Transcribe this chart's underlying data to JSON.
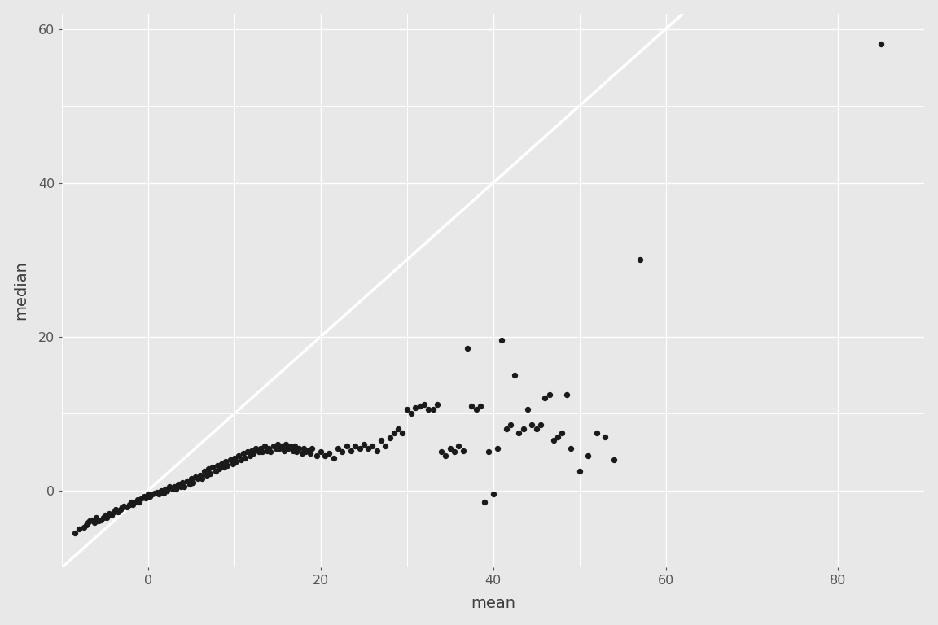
{
  "title": "",
  "xlabel": "mean",
  "ylabel": "median",
  "xlim": [
    -10,
    90
  ],
  "ylim": [
    -10,
    62
  ],
  "xticks": [
    0,
    20,
    40,
    60,
    80
  ],
  "yticks": [
    0,
    20,
    40,
    60
  ],
  "background_color": "#E8E8E8",
  "grid_color": "#FFFFFF",
  "line_color": "#FFFFFF",
  "dot_color": "#1A1A1A",
  "dot_size": 28,
  "points": [
    [
      -8.5,
      -5.5
    ],
    [
      -8.0,
      -5.0
    ],
    [
      -7.5,
      -4.8
    ],
    [
      -7.2,
      -4.5
    ],
    [
      -7.0,
      -4.2
    ],
    [
      -6.8,
      -4.0
    ],
    [
      -6.5,
      -3.8
    ],
    [
      -6.2,
      -4.2
    ],
    [
      -6.0,
      -3.5
    ],
    [
      -5.8,
      -4.0
    ],
    [
      -5.5,
      -3.8
    ],
    [
      -5.2,
      -3.5
    ],
    [
      -5.0,
      -3.2
    ],
    [
      -4.8,
      -3.5
    ],
    [
      -4.5,
      -3.0
    ],
    [
      -4.2,
      -3.2
    ],
    [
      -4.0,
      -2.8
    ],
    [
      -3.8,
      -2.5
    ],
    [
      -3.5,
      -2.8
    ],
    [
      -3.2,
      -2.5
    ],
    [
      -3.0,
      -2.2
    ],
    [
      -2.8,
      -2.0
    ],
    [
      -2.5,
      -2.2
    ],
    [
      -2.2,
      -1.8
    ],
    [
      -2.0,
      -1.5
    ],
    [
      -1.8,
      -1.8
    ],
    [
      -1.5,
      -1.5
    ],
    [
      -1.2,
      -1.2
    ],
    [
      -1.0,
      -1.5
    ],
    [
      -0.8,
      -1.0
    ],
    [
      -0.5,
      -0.8
    ],
    [
      -0.3,
      -1.0
    ],
    [
      0.0,
      -0.5
    ],
    [
      0.2,
      -0.8
    ],
    [
      0.5,
      -0.5
    ],
    [
      0.8,
      -0.3
    ],
    [
      1.0,
      -0.2
    ],
    [
      1.2,
      -0.5
    ],
    [
      1.5,
      0.0
    ],
    [
      1.8,
      -0.3
    ],
    [
      2.0,
      0.2
    ],
    [
      2.2,
      0.0
    ],
    [
      2.5,
      0.5
    ],
    [
      2.8,
      0.2
    ],
    [
      3.0,
      0.5
    ],
    [
      3.2,
      0.2
    ],
    [
      3.5,
      0.8
    ],
    [
      3.8,
      0.5
    ],
    [
      4.0,
      1.0
    ],
    [
      4.2,
      0.5
    ],
    [
      4.5,
      1.2
    ],
    [
      4.8,
      0.8
    ],
    [
      5.0,
      1.5
    ],
    [
      5.2,
      1.0
    ],
    [
      5.5,
      1.8
    ],
    [
      5.8,
      1.5
    ],
    [
      6.0,
      2.0
    ],
    [
      6.2,
      1.5
    ],
    [
      6.5,
      2.5
    ],
    [
      6.8,
      2.0
    ],
    [
      7.0,
      2.8
    ],
    [
      7.2,
      2.2
    ],
    [
      7.5,
      3.0
    ],
    [
      7.8,
      2.5
    ],
    [
      8.0,
      3.2
    ],
    [
      8.2,
      2.8
    ],
    [
      8.5,
      3.5
    ],
    [
      8.8,
      3.0
    ],
    [
      9.0,
      3.8
    ],
    [
      9.2,
      3.2
    ],
    [
      9.5,
      4.0
    ],
    [
      9.8,
      3.5
    ],
    [
      10.0,
      4.2
    ],
    [
      10.2,
      3.8
    ],
    [
      10.5,
      4.5
    ],
    [
      10.8,
      4.0
    ],
    [
      11.0,
      4.8
    ],
    [
      11.2,
      4.2
    ],
    [
      11.5,
      5.0
    ],
    [
      11.8,
      4.5
    ],
    [
      12.0,
      5.2
    ],
    [
      12.2,
      4.8
    ],
    [
      12.5,
      5.5
    ],
    [
      12.8,
      5.0
    ],
    [
      13.0,
      5.5
    ],
    [
      13.2,
      5.0
    ],
    [
      13.5,
      5.8
    ],
    [
      13.8,
      5.2
    ],
    [
      14.0,
      5.5
    ],
    [
      14.2,
      5.0
    ],
    [
      14.5,
      5.8
    ],
    [
      14.8,
      5.5
    ],
    [
      15.0,
      6.0
    ],
    [
      15.2,
      5.5
    ],
    [
      15.5,
      5.8
    ],
    [
      15.8,
      5.2
    ],
    [
      16.0,
      6.0
    ],
    [
      16.2,
      5.5
    ],
    [
      16.5,
      5.8
    ],
    [
      16.8,
      5.2
    ],
    [
      17.0,
      5.8
    ],
    [
      17.2,
      5.0
    ],
    [
      17.5,
      5.5
    ],
    [
      17.8,
      4.8
    ],
    [
      18.0,
      5.5
    ],
    [
      18.2,
      5.0
    ],
    [
      18.5,
      5.2
    ],
    [
      18.8,
      4.8
    ],
    [
      19.0,
      5.5
    ],
    [
      19.5,
      4.5
    ],
    [
      20.0,
      5.0
    ],
    [
      20.5,
      4.5
    ],
    [
      21.0,
      4.8
    ],
    [
      21.5,
      4.2
    ],
    [
      22.0,
      5.5
    ],
    [
      22.5,
      5.0
    ],
    [
      23.0,
      5.8
    ],
    [
      23.5,
      5.2
    ],
    [
      24.0,
      5.8
    ],
    [
      24.5,
      5.5
    ],
    [
      25.0,
      6.0
    ],
    [
      25.5,
      5.5
    ],
    [
      26.0,
      5.8
    ],
    [
      26.5,
      5.2
    ],
    [
      27.0,
      6.5
    ],
    [
      27.5,
      5.8
    ],
    [
      28.0,
      6.8
    ],
    [
      28.5,
      7.5
    ],
    [
      29.0,
      8.0
    ],
    [
      29.5,
      7.5
    ],
    [
      30.0,
      10.5
    ],
    [
      30.5,
      10.0
    ],
    [
      31.0,
      10.8
    ],
    [
      31.5,
      11.0
    ],
    [
      32.0,
      11.2
    ],
    [
      32.5,
      10.5
    ],
    [
      33.0,
      10.5
    ],
    [
      33.5,
      11.2
    ],
    [
      34.0,
      5.0
    ],
    [
      34.5,
      4.5
    ],
    [
      35.0,
      5.5
    ],
    [
      35.5,
      5.0
    ],
    [
      36.0,
      5.8
    ],
    [
      36.5,
      5.2
    ],
    [
      37.0,
      18.5
    ],
    [
      37.5,
      11.0
    ],
    [
      38.0,
      10.5
    ],
    [
      38.5,
      11.0
    ],
    [
      39.0,
      -1.5
    ],
    [
      39.5,
      5.0
    ],
    [
      40.0,
      -0.5
    ],
    [
      40.5,
      5.5
    ],
    [
      41.0,
      19.5
    ],
    [
      41.5,
      8.0
    ],
    [
      42.0,
      8.5
    ],
    [
      42.5,
      15.0
    ],
    [
      43.0,
      7.5
    ],
    [
      43.5,
      8.0
    ],
    [
      44.0,
      10.5
    ],
    [
      44.5,
      8.5
    ],
    [
      45.0,
      8.0
    ],
    [
      45.5,
      8.5
    ],
    [
      46.0,
      12.0
    ],
    [
      46.5,
      12.5
    ],
    [
      47.0,
      6.5
    ],
    [
      47.5,
      7.0
    ],
    [
      48.0,
      7.5
    ],
    [
      48.5,
      12.5
    ],
    [
      49.0,
      5.5
    ],
    [
      50.0,
      2.5
    ],
    [
      51.0,
      4.5
    ],
    [
      52.0,
      7.5
    ],
    [
      53.0,
      7.0
    ],
    [
      54.0,
      4.0
    ],
    [
      57.0,
      30.0
    ],
    [
      85.0,
      58.0
    ]
  ]
}
